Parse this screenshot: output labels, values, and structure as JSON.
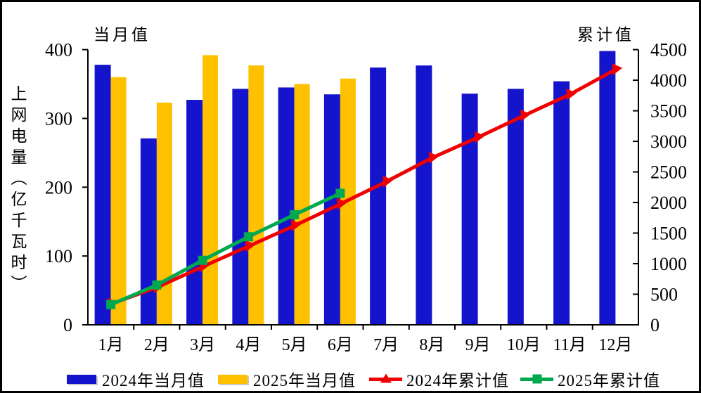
{
  "chart_data": {
    "type": "combo-bar-line",
    "categories": [
      "1月",
      "2月",
      "3月",
      "4月",
      "5月",
      "6月",
      "7月",
      "8月",
      "9月",
      "10月",
      "11月",
      "12月"
    ],
    "series": [
      {
        "name": "2024年当月值",
        "type": "bar",
        "axis": "left",
        "color": "#1414CC",
        "values": [
          378,
          271,
          327,
          343,
          345,
          335,
          374,
          377,
          336,
          343,
          354,
          398
        ]
      },
      {
        "name": "2025年当月值",
        "type": "bar",
        "axis": "left",
        "color": "#FFC000",
        "values": [
          360,
          323,
          392,
          377,
          350,
          358
        ]
      },
      {
        "name": "2024年累计值",
        "type": "line",
        "marker": "triangle",
        "axis": "right",
        "color": "#F00000",
        "values": [
          340,
          610,
          950,
          1285,
          1620,
          1975,
          2340,
          2730,
          3065,
          3420,
          3765,
          4175
        ]
      },
      {
        "name": "2025年累计值",
        "type": "line",
        "marker": "square",
        "axis": "right",
        "color": "#00A850",
        "values": [
          330,
          650,
          1055,
          1440,
          1800,
          2150
        ]
      }
    ],
    "left_axis": {
      "label": "当月值",
      "min": 0,
      "max": 400,
      "step": 100
    },
    "right_axis": {
      "label": "累计值",
      "min": 0,
      "max": 4500,
      "step": 500
    },
    "y_axis_title": "上网电量（亿千瓦时）",
    "grid": false,
    "legend_position": "bottom",
    "colors": {
      "bar_2024": "#1414CC",
      "bar_2025": "#FFC000",
      "line_2024": "#F00000",
      "line_2025": "#00A850",
      "axis": "#000000"
    }
  }
}
